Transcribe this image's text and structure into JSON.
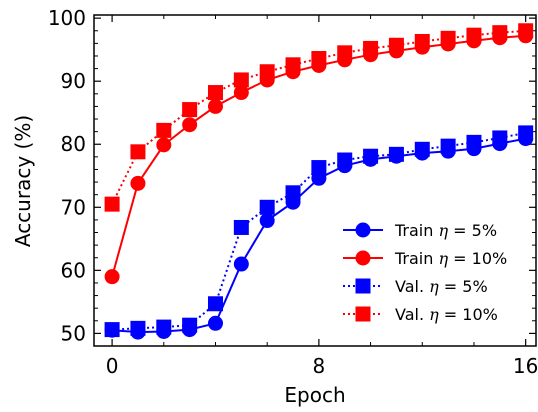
{
  "chart_data": {
    "type": "line",
    "xlabel": "Epoch",
    "ylabel": "Accuracy (%)",
    "xlim": [
      -0.7,
      16.4
    ],
    "ylim": [
      48,
      100.5
    ],
    "xticks": [
      0,
      8,
      16
    ],
    "yticks": [
      50,
      60,
      70,
      80,
      90,
      100
    ],
    "x": [
      0,
      1,
      2,
      3,
      4,
      5,
      6,
      7,
      8,
      9,
      10,
      11,
      12,
      13,
      14,
      15,
      16
    ],
    "legend_position": "lower-right",
    "series": [
      {
        "name_prefix": "Train",
        "name_symbol": "η",
        "name_suffix": " = 5%",
        "color": "#0000ff",
        "marker": "circle",
        "linestyle": "solid",
        "values": [
          50.5,
          50.2,
          50.3,
          50.6,
          51.6,
          61.0,
          67.9,
          70.8,
          74.6,
          76.6,
          77.6,
          78.1,
          78.6,
          78.9,
          79.3,
          80.1,
          80.9
        ]
      },
      {
        "name_prefix": "Train",
        "name_symbol": "η",
        "name_suffix": " = 10%",
        "color": "#ff0000",
        "marker": "circle",
        "linestyle": "solid",
        "values": [
          59.0,
          73.8,
          79.9,
          83.1,
          86.0,
          88.2,
          90.2,
          91.5,
          92.5,
          93.4,
          94.2,
          94.8,
          95.4,
          95.9,
          96.4,
          96.9,
          97.2
        ]
      },
      {
        "name_prefix": "Val.",
        "name_symbol": "η",
        "name_suffix": " = 5%",
        "color": "#0000ff",
        "marker": "square",
        "linestyle": "dotted",
        "values": [
          50.6,
          50.8,
          51.0,
          51.3,
          54.7,
          66.8,
          70.0,
          72.3,
          76.3,
          77.5,
          78.1,
          78.4,
          79.2,
          79.7,
          80.3,
          81.0,
          81.8
        ]
      },
      {
        "name_prefix": "Val.",
        "name_symbol": "η",
        "name_suffix": " = 10%",
        "color": "#ff0000",
        "marker": "square",
        "linestyle": "dotted",
        "values": [
          70.5,
          78.8,
          82.2,
          85.5,
          88.2,
          90.2,
          91.5,
          92.6,
          93.6,
          94.5,
          95.2,
          95.7,
          96.3,
          96.8,
          97.3,
          97.7,
          98.0
        ]
      }
    ]
  }
}
